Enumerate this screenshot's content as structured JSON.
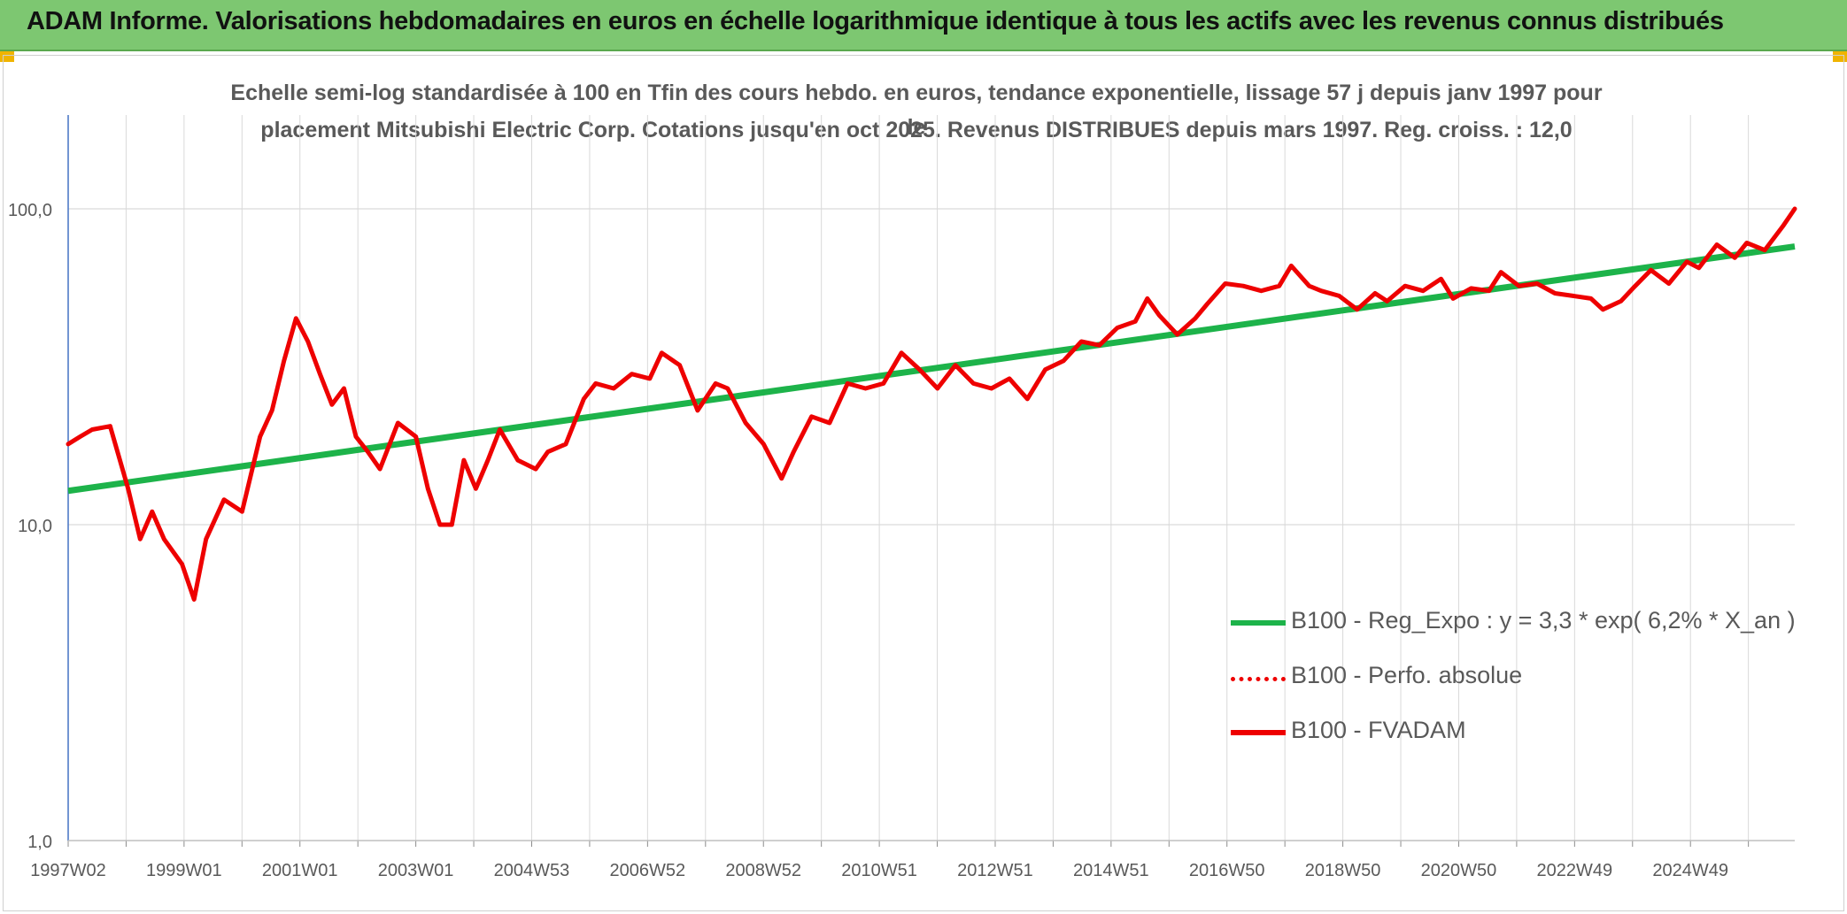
{
  "banner": {
    "title": "ADAM Informe. Valorisations hebdomadaires en euros en échelle logarithmique identique à tous les actifs avec les revenus connus distribués"
  },
  "colors": {
    "banner_bg": "#7dc771",
    "regression": "#1db34a",
    "fvadam": "#ee0000",
    "perf": "#ee0000",
    "grid": "#d9d9d9",
    "axis": "#4472c4",
    "corner": "#f0b400"
  },
  "chart_data": {
    "type": "line",
    "title_line1": "Echelle semi-log standardisée à 100 en Tfin des cours hebdo. en euros, tendance exponentielle, lissage 57 j depuis janv 1997 pour le",
    "title_line2": "placement Mitsubishi Electric Corp. Cotations jusqu'en oct 2025. Revenus DISTRIBUES depuis mars 1997. Reg. croiss. : 12,0",
    "y_scale": "log",
    "ylim": [
      1,
      200
    ],
    "y_ticks": [
      1,
      10,
      100
    ],
    "y_tick_labels": [
      "1,0",
      "10,0",
      "100,0"
    ],
    "x_tick_labels": [
      "1997W02",
      "1999W01",
      "2001W01",
      "2003W01",
      "2004W53",
      "2006W52",
      "2008W52",
      "2010W51",
      "2012W51",
      "2014W51",
      "2016W50",
      "2018W50",
      "2020W50",
      "2022W49",
      "2024W49"
    ],
    "x_range_years": [
      1997.0,
      2025.8
    ],
    "legend_position": "bottom-right",
    "legend": [
      {
        "key": "regression",
        "label": "B100 - Reg_Expo : y = 3,3 * exp( 6,2% *  X_an )"
      },
      {
        "key": "perf",
        "label": "B100 - Perfo. absolue"
      },
      {
        "key": "fvadam",
        "label": "B100 - FVADAM"
      }
    ],
    "series": [
      {
        "name": "B100 - Reg_Expo",
        "kind": "exponential",
        "start": [
          1997.0,
          12.8
        ],
        "end": [
          2025.8,
          76
        ]
      },
      {
        "name": "B100 - FVADAM",
        "kind": "line",
        "x": [
          1997.0,
          1997.2,
          1997.4,
          1997.7,
          1998.0,
          1998.2,
          1998.4,
          1998.6,
          1998.9,
          1999.1,
          1999.3,
          1999.6,
          1999.9,
          2000.2,
          2000.4,
          2000.6,
          2000.8,
          2001.0,
          2001.2,
          2001.4,
          2001.6,
          2001.8,
          2002.0,
          2002.2,
          2002.5,
          2002.8,
          2003.0,
          2003.2,
          2003.4,
          2003.6,
          2003.8,
          2004.0,
          2004.2,
          2004.5,
          2004.8,
          2005.0,
          2005.3,
          2005.6,
          2005.8,
          2006.1,
          2006.4,
          2006.7,
          2006.9,
          2007.2,
          2007.5,
          2007.8,
          2008.0,
          2008.3,
          2008.6,
          2008.9,
          2009.1,
          2009.4,
          2009.7,
          2010.0,
          2010.3,
          2010.6,
          2010.9,
          2011.2,
          2011.5,
          2011.8,
          2012.1,
          2012.4,
          2012.7,
          2013.0,
          2013.3,
          2013.6,
          2013.9,
          2014.2,
          2014.5,
          2014.8,
          2015.0,
          2015.2,
          2015.5,
          2015.8,
          2016.0,
          2016.3,
          2016.6,
          2016.9,
          2017.2,
          2017.4,
          2017.7,
          2017.9,
          2018.2,
          2018.5,
          2018.8,
          2019.0,
          2019.3,
          2019.6,
          2019.9,
          2020.1,
          2020.4,
          2020.7,
          2020.9,
          2021.2,
          2021.5,
          2021.8,
          2022.1,
          2022.4,
          2022.6,
          2022.9,
          2023.1,
          2023.4,
          2023.7,
          2024.0,
          2024.2,
          2024.5,
          2024.8,
          2025.0,
          2025.3,
          2025.6,
          2025.8
        ],
        "y": [
          18,
          19,
          20,
          20.5,
          13,
          9,
          11,
          9,
          7.5,
          5.8,
          9,
          12,
          11,
          19,
          23,
          33,
          45,
          38,
          30,
          24,
          27,
          19,
          17,
          15,
          21,
          19,
          13,
          10,
          10,
          16,
          13,
          16,
          20,
          16,
          15,
          17,
          18,
          25,
          28,
          27,
          30,
          29,
          35,
          32,
          23,
          28,
          27,
          21,
          18,
          14,
          17,
          22,
          21,
          28,
          27,
          28,
          35,
          31,
          27,
          32,
          28,
          27,
          29,
          25,
          31,
          33,
          38,
          37,
          42,
          44,
          52,
          46,
          40,
          45,
          50,
          58,
          57,
          55,
          57,
          66,
          57,
          55,
          53,
          48,
          54,
          51,
          57,
          55,
          60,
          52,
          56,
          55,
          63,
          57,
          58,
          54,
          53,
          52,
          48,
          51,
          56,
          64,
          58,
          68,
          65,
          77,
          70,
          78,
          74,
          88,
          100
        ]
      }
    ]
  }
}
